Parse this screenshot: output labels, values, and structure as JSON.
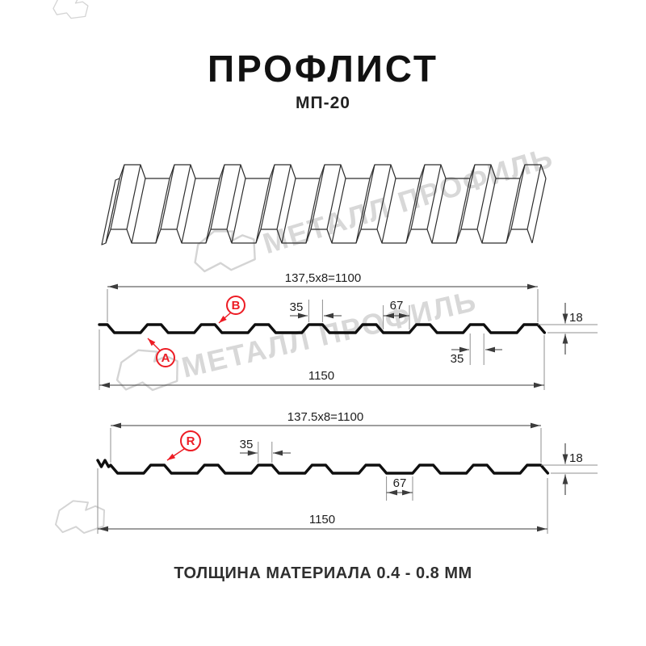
{
  "title": "ПРОФЛИСТ",
  "subtitle": "МП-20",
  "footer": "ТОЛЩИНА МАТЕРИАЛА 0.4 - 0.8 ММ",
  "watermark": {
    "text": "МЕТАЛЛ ПРОФИЛЬ",
    "color": "#d8d8d8"
  },
  "colors": {
    "accent_red": "#ed1c24",
    "profile_line": "#0f0f0f",
    "dimension_line": "#3c3c3c"
  },
  "diagram1": {
    "dim_width_formula": "137,5x8=1100",
    "dim_total_width": "1150",
    "dim_crest_top": "35",
    "dim_valley": "67",
    "dim_height": "18",
    "dim_crest_bottom": "35",
    "label_a": "A",
    "label_b": "B"
  },
  "diagram2": {
    "dim_width_formula": "137.5x8=1100",
    "dim_total_width": "1150",
    "dim_crest_top": "35",
    "dim_valley": "67",
    "dim_height": "18",
    "label_r": "R"
  }
}
